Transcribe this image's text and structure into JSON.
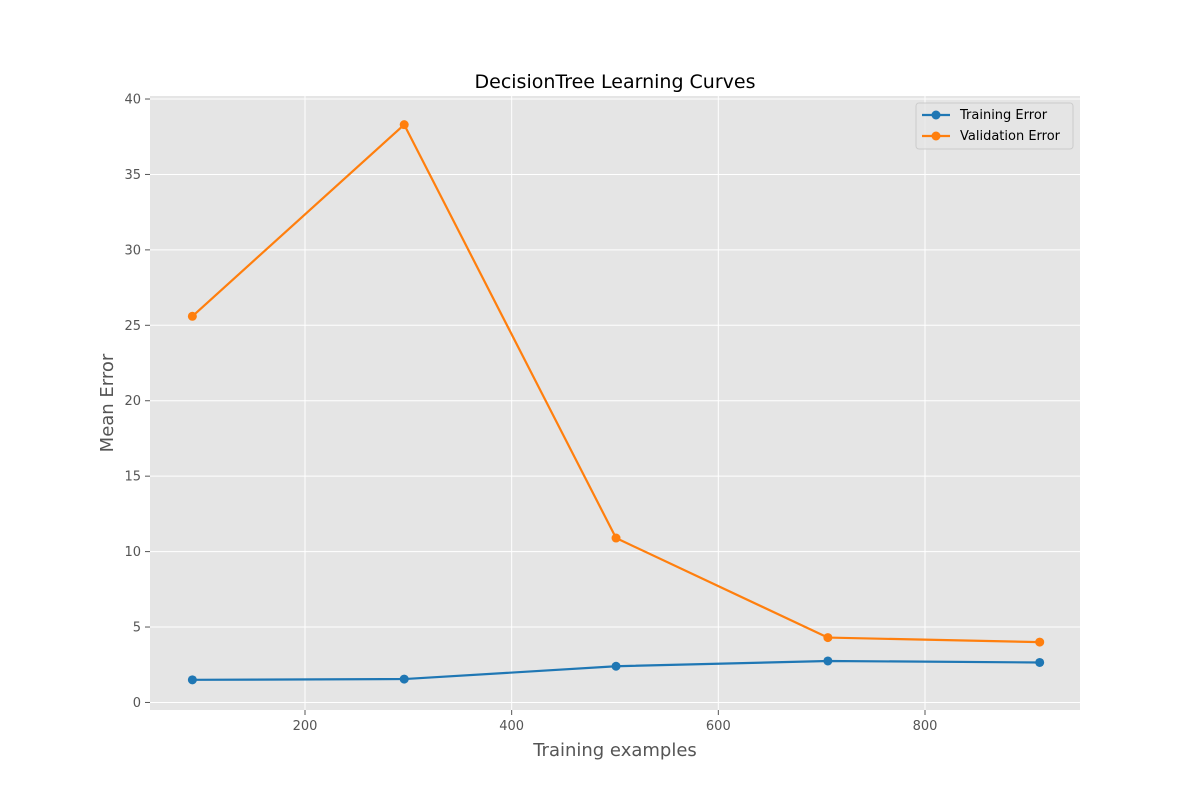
{
  "chart_data": {
    "type": "line",
    "title": "DecisionTree Learning Curves",
    "xlabel": "Training examples",
    "ylabel": "Mean Error",
    "xlim": [
      50,
      950
    ],
    "ylim": [
      -0.5,
      40.2
    ],
    "xticks": [
      200,
      400,
      600,
      800
    ],
    "yticks": [
      0,
      5,
      10,
      15,
      20,
      25,
      30,
      35,
      40
    ],
    "grid": true,
    "legend_position": "top-right",
    "x": [
      91,
      296,
      501,
      706,
      911
    ],
    "series": [
      {
        "name": "Training Error",
        "color": "#1f77b4",
        "values": [
          1.5,
          1.55,
          2.4,
          2.75,
          2.65
        ]
      },
      {
        "name": "Validation Error",
        "color": "#ff7f0e",
        "values": [
          25.6,
          38.3,
          10.9,
          4.3,
          4.0
        ]
      }
    ],
    "style": {
      "background": "#e5e5e5",
      "grid_color": "#ffffff",
      "tick_color": "#555555"
    }
  }
}
